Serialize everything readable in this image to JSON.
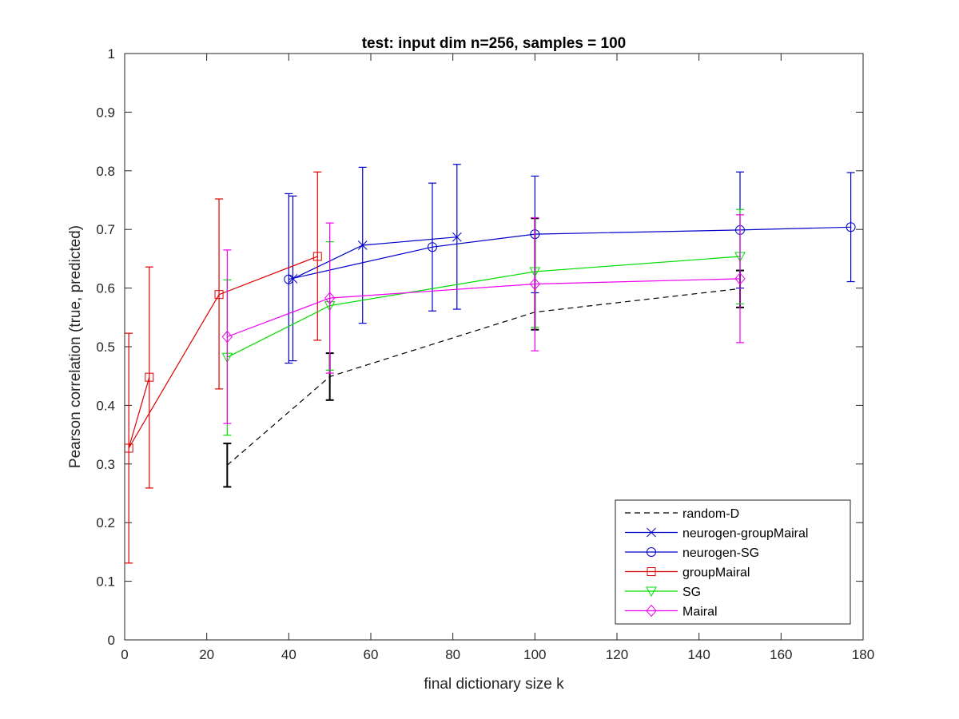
{
  "chart_data": {
    "type": "line",
    "title": "test: input dim n=256, samples = 100",
    "xlabel": "final dictionary size k",
    "ylabel": "Pearson correlation (true, predicted)",
    "xlim": [
      0,
      180
    ],
    "ylim": [
      0,
      1
    ],
    "xticks": [
      0,
      20,
      40,
      60,
      80,
      100,
      120,
      140,
      160,
      180
    ],
    "yticks": [
      0,
      0.1,
      0.2,
      0.3,
      0.4,
      0.5,
      0.6,
      0.7,
      0.8,
      0.9,
      1
    ],
    "ytick_labels": [
      "0",
      "0.1",
      "0.2",
      "0.3",
      "0.4",
      "0.5",
      "0.6",
      "0.7",
      "0.8",
      "0.9",
      "1"
    ],
    "grid": false,
    "legend_position": "bottom-right",
    "series": [
      {
        "name": "random-D",
        "color": "#000000",
        "line_style": "dashed",
        "marker": "none",
        "x": [
          25,
          50,
          100,
          150
        ],
        "y": [
          0.298,
          0.449,
          0.559,
          0.599
        ],
        "err_low": [
          0.261,
          0.409,
          0.529,
          0.567
        ],
        "err_high": [
          0.335,
          0.489,
          0.719,
          0.63
        ]
      },
      {
        "name": "neurogen-groupMairal",
        "color": "#0000cc",
        "line_style": "solid",
        "marker": "x",
        "x": [
          41,
          58,
          81
        ],
        "y": [
          0.616,
          0.673,
          0.687
        ],
        "err_low": [
          0.476,
          0.54,
          0.564
        ],
        "err_high": [
          0.757,
          0.806,
          0.811
        ]
      },
      {
        "name": "neurogen-SG",
        "color": "#0000cc",
        "line_style": "solid",
        "marker": "circle",
        "x": [
          40,
          75,
          100,
          150,
          177
        ],
        "y": [
          0.615,
          0.67,
          0.692,
          0.699,
          0.704
        ],
        "err_low": [
          0.472,
          0.561,
          0.592,
          0.6,
          0.611
        ],
        "err_high": [
          0.761,
          0.779,
          0.791,
          0.798,
          0.797
        ]
      },
      {
        "name": "groupMairal",
        "color": "#dd0000",
        "line_style": "solid",
        "marker": "square",
        "x": [
          6,
          1,
          23,
          47
        ],
        "y": [
          0.448,
          0.327,
          0.589,
          0.654
        ],
        "err_low": [
          0.259,
          0.131,
          0.428,
          0.511
        ],
        "err_high": [
          0.636,
          0.523,
          0.752,
          0.798
        ]
      },
      {
        "name": "SG",
        "color": "#00dd00",
        "line_style": "solid",
        "marker": "triangle-down",
        "x": [
          25,
          50,
          100,
          150
        ],
        "y": [
          0.482,
          0.57,
          0.628,
          0.654
        ],
        "err_low": [
          0.349,
          0.46,
          0.533,
          0.573
        ],
        "err_high": [
          0.614,
          0.679,
          0.72,
          0.734
        ]
      },
      {
        "name": "Mairal",
        "color": "#ee00ee",
        "line_style": "solid",
        "marker": "diamond",
        "x": [
          25,
          50,
          100,
          150
        ],
        "y": [
          0.517,
          0.583,
          0.607,
          0.616
        ],
        "err_low": [
          0.369,
          0.455,
          0.493,
          0.507
        ],
        "err_high": [
          0.665,
          0.711,
          0.72,
          0.725
        ]
      }
    ]
  }
}
